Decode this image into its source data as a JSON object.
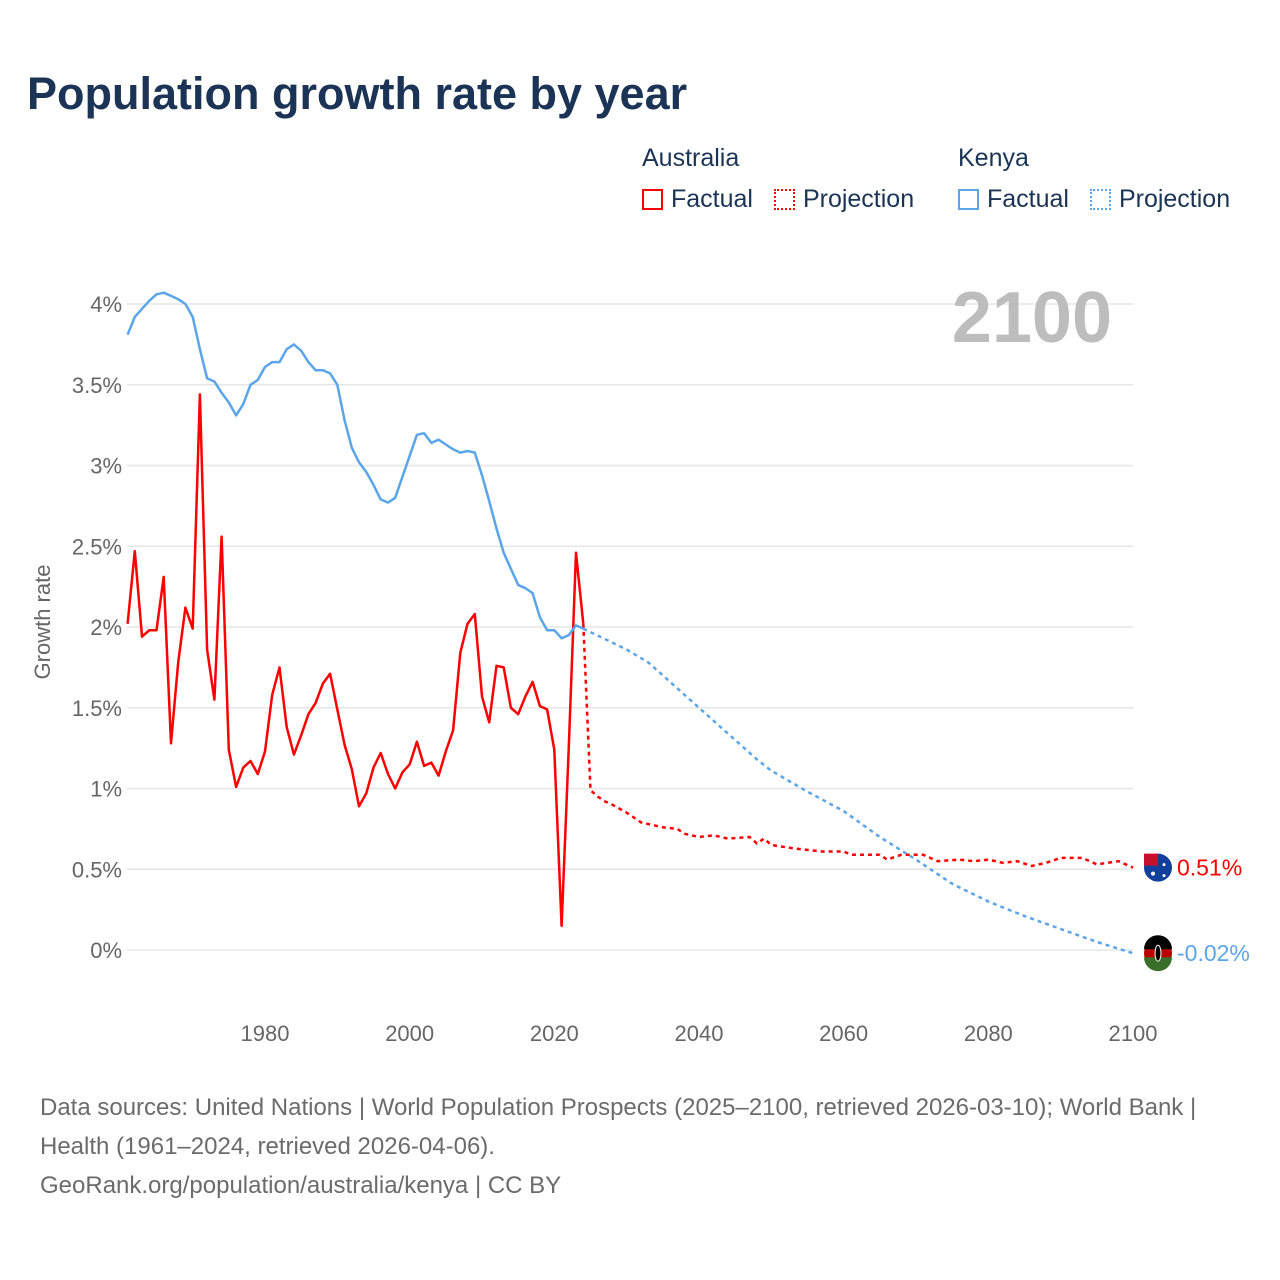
{
  "title": "Population growth rate by year",
  "legend": {
    "groups": [
      {
        "country": "Australia",
        "factual": "Factual",
        "projection": "Projection",
        "color": "#ff0000"
      },
      {
        "country": "Kenya",
        "factual": "Factual",
        "projection": "Projection",
        "color": "#5ba5ea"
      }
    ]
  },
  "sources": {
    "line1": "Data sources: United Nations | World Population Prospects (2025–2100, retrieved 2026-03-10); World Bank | Health (1961–2024, retrieved 2026-04-06).",
    "line2": "GeoRank.org/population/australia/kenya | CC BY"
  },
  "chart_data": {
    "type": "line",
    "title": "Population growth rate by year",
    "ylabel": "Growth rate",
    "xlabel": "",
    "year_overlay": "2100",
    "xlim": [
      1961,
      2100
    ],
    "ylim": [
      -0.3,
      4.2
    ],
    "x_ticks": [
      1980,
      2000,
      2020,
      2040,
      2060,
      2080,
      2100
    ],
    "y_ticks": [
      0,
      0.5,
      1,
      1.5,
      2,
      2.5,
      3,
      3.5,
      4
    ],
    "y_tick_labels": [
      "0%",
      "0.5%",
      "1%",
      "1.5%",
      "2%",
      "2.5%",
      "3%",
      "3.5%",
      "4%"
    ],
    "grid": true,
    "legend_position": "top-right",
    "series": [
      {
        "name": "Australia",
        "color": "#ff0000",
        "end_label": "0.51%",
        "factual_start_year": 1961,
        "factual": [
          2.02,
          2.47,
          1.94,
          1.98,
          1.98,
          2.31,
          1.28,
          1.78,
          2.12,
          1.99,
          3.44,
          1.86,
          1.55,
          2.56,
          1.24,
          1.01,
          1.13,
          1.17,
          1.09,
          1.23,
          1.58,
          1.75,
          1.38,
          1.21,
          1.33,
          1.46,
          1.53,
          1.65,
          1.71,
          1.49,
          1.27,
          1.12,
          0.89,
          0.97,
          1.13,
          1.22,
          1.09,
          1.0,
          1.1,
          1.15,
          1.29,
          1.14,
          1.16,
          1.08,
          1.23,
          1.36,
          1.84,
          2.02,
          2.08,
          1.57,
          1.41,
          1.76,
          1.75,
          1.5,
          1.46,
          1.57,
          1.66,
          1.51,
          1.49,
          1.24,
          0.15,
          1.26,
          2.46,
          2.02
        ],
        "projection": [
          [
            2024,
            2.02
          ],
          [
            2025,
            0.99
          ],
          [
            2026,
            0.95
          ],
          [
            2027,
            0.92
          ],
          [
            2028,
            0.9
          ],
          [
            2030,
            0.85
          ],
          [
            2032,
            0.79
          ],
          [
            2035,
            0.76
          ],
          [
            2037,
            0.75
          ],
          [
            2038,
            0.72
          ],
          [
            2040,
            0.7
          ],
          [
            2042,
            0.71
          ],
          [
            2044,
            0.69
          ],
          [
            2047,
            0.7
          ],
          [
            2048,
            0.66
          ],
          [
            2049,
            0.69
          ],
          [
            2050,
            0.65
          ],
          [
            2053,
            0.63
          ],
          [
            2057,
            0.61
          ],
          [
            2060,
            0.61
          ],
          [
            2061,
            0.59
          ],
          [
            2065,
            0.59
          ],
          [
            2066,
            0.56
          ],
          [
            2068,
            0.59
          ],
          [
            2071,
            0.59
          ],
          [
            2073,
            0.55
          ],
          [
            2076,
            0.56
          ],
          [
            2078,
            0.55
          ],
          [
            2080,
            0.56
          ],
          [
            2082,
            0.54
          ],
          [
            2084,
            0.55
          ],
          [
            2086,
            0.52
          ],
          [
            2088,
            0.54
          ],
          [
            2090,
            0.57
          ],
          [
            2093,
            0.57
          ],
          [
            2095,
            0.53
          ],
          [
            2098,
            0.55
          ],
          [
            2100,
            0.51
          ]
        ]
      },
      {
        "name": "Kenya",
        "color": "#5ba5ea",
        "end_label": "-0.02%",
        "factual_start_year": 1961,
        "factual": [
          3.81,
          3.92,
          3.97,
          4.02,
          4.06,
          4.07,
          4.05,
          4.03,
          4.0,
          3.92,
          3.72,
          3.54,
          3.52,
          3.45,
          3.39,
          3.31,
          3.38,
          3.5,
          3.53,
          3.61,
          3.64,
          3.64,
          3.72,
          3.75,
          3.71,
          3.64,
          3.59,
          3.59,
          3.57,
          3.5,
          3.28,
          3.11,
          3.02,
          2.96,
          2.88,
          2.79,
          2.77,
          2.8,
          2.93,
          3.06,
          3.19,
          3.2,
          3.14,
          3.16,
          3.13,
          3.1,
          3.08,
          3.09,
          3.08,
          2.94,
          2.78,
          2.61,
          2.46,
          2.36,
          2.26,
          2.24,
          2.21,
          2.06,
          1.98,
          1.98,
          1.93,
          1.95,
          2.01,
          1.99
        ],
        "projection": [
          [
            2024,
            1.99
          ],
          [
            2030,
            1.86
          ],
          [
            2033,
            1.78
          ],
          [
            2036,
            1.66
          ],
          [
            2040,
            1.5
          ],
          [
            2045,
            1.3
          ],
          [
            2048,
            1.18
          ],
          [
            2050,
            1.11
          ],
          [
            2055,
            0.98
          ],
          [
            2060,
            0.86
          ],
          [
            2065,
            0.7
          ],
          [
            2070,
            0.56
          ],
          [
            2075,
            0.41
          ],
          [
            2080,
            0.3
          ],
          [
            2085,
            0.21
          ],
          [
            2090,
            0.13
          ],
          [
            2095,
            0.05
          ],
          [
            2100,
            -0.02
          ]
        ]
      }
    ]
  }
}
